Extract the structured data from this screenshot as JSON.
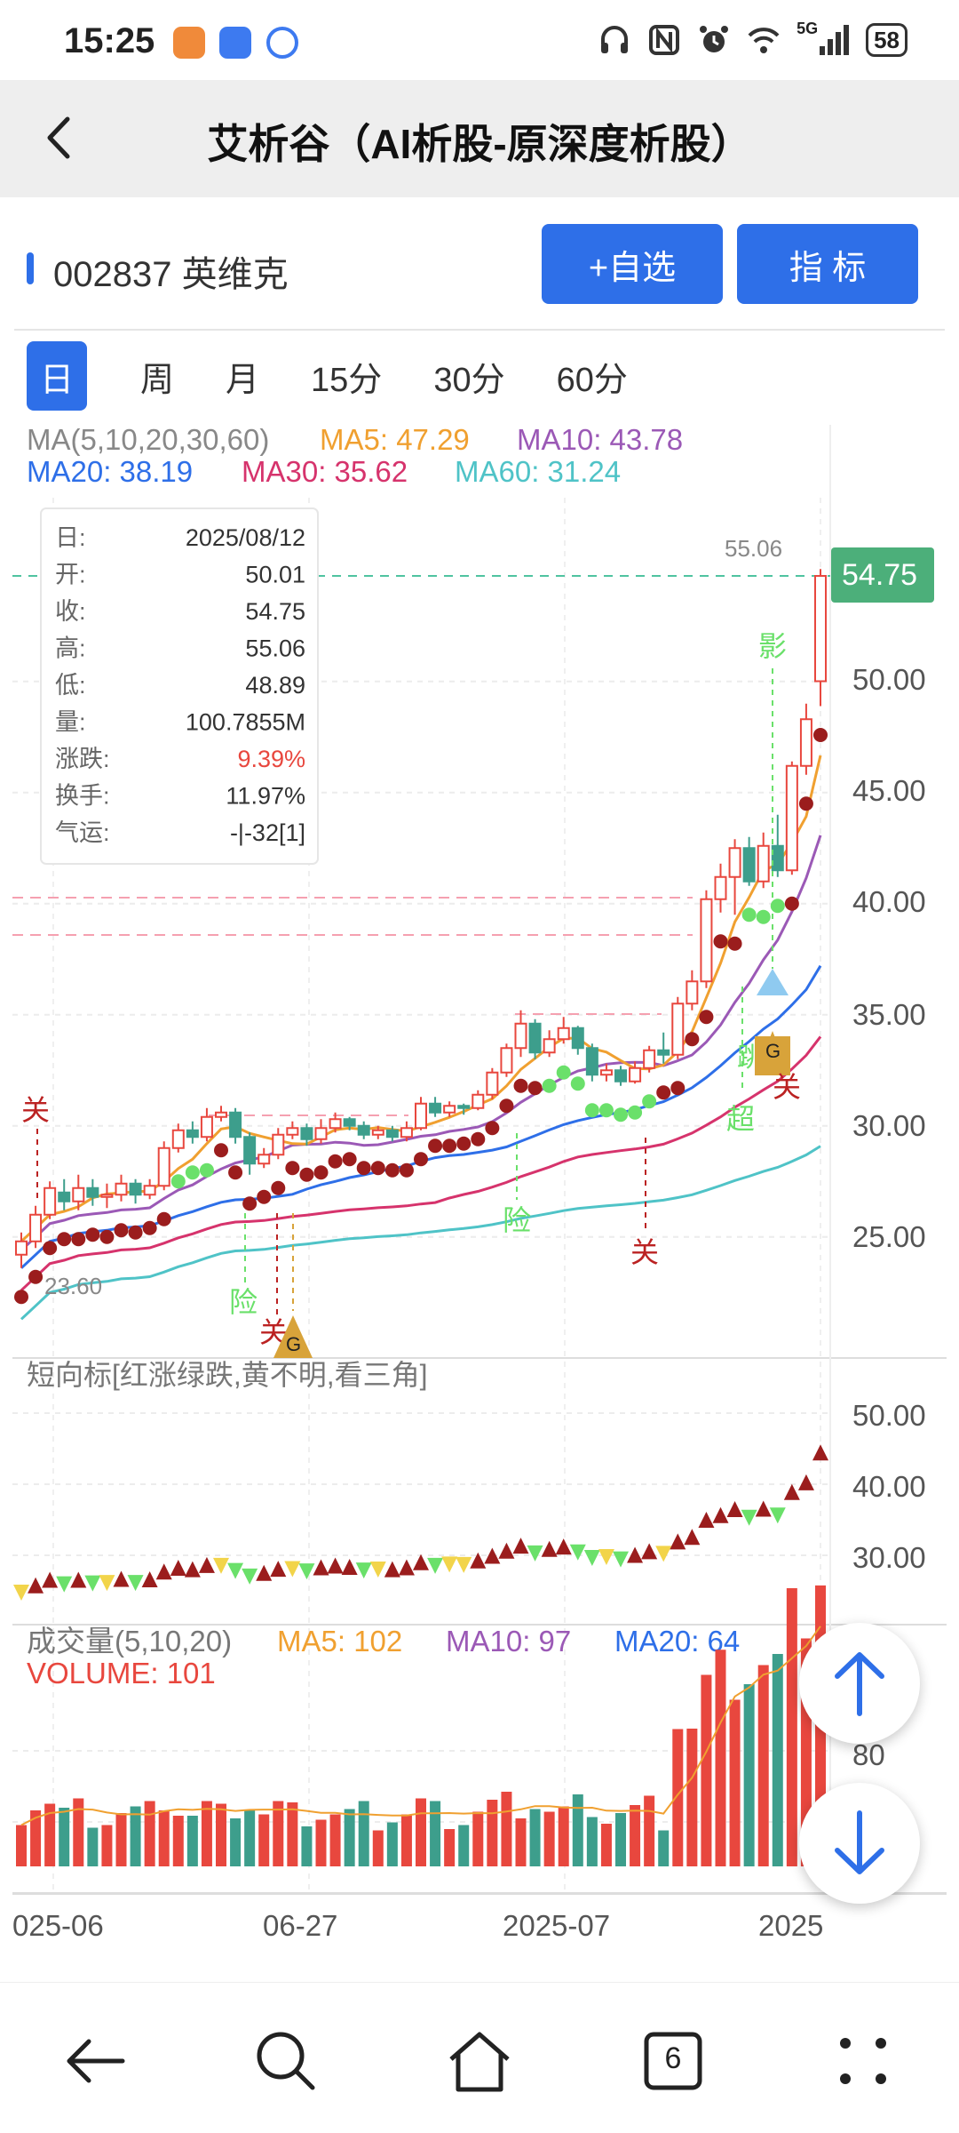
{
  "status_bar": {
    "time": "15:25",
    "signal_label": "5G",
    "battery": "58"
  },
  "nav": {
    "title": "艾析谷（AI析股-原深度析股）"
  },
  "stock": {
    "code_name": "002837 英维克",
    "add_watch_label": "+自选",
    "indicator_label": "指  标"
  },
  "tabs": [
    "日",
    "周",
    "月",
    "15分",
    "30分",
    "60分"
  ],
  "ma_legend": {
    "title": "MA(5,10,20,30,60)",
    "ma5": "MA5: 47.29",
    "ma10": "MA10: 43.78",
    "ma20": "MA20: 38.19",
    "ma30": "MA30: 35.62",
    "ma60": "MA60: 31.24"
  },
  "info_box": [
    {
      "label": "日:",
      "value": "2025/08/12"
    },
    {
      "label": "开:",
      "value": "50.01"
    },
    {
      "label": "收:",
      "value": "54.75"
    },
    {
      "label": "高:",
      "value": "55.06"
    },
    {
      "label": "低:",
      "value": "48.89"
    },
    {
      "label": "量:",
      "value": "100.7855M"
    },
    {
      "label": "涨跌:",
      "value": "9.39%"
    },
    {
      "label": "换手:",
      "value": "11.97%"
    },
    {
      "label": "气运:",
      "value": "-|-32[1]"
    }
  ],
  "price_axis": [
    "50.00",
    "45.00",
    "40.00",
    "35.00",
    "30.00",
    "25.00"
  ],
  "last_price": "54.75",
  "high_label": "55.06",
  "low_label": "23.60",
  "annotations": {
    "guan": "关",
    "xian": "险",
    "ying": "影",
    "chao": "超",
    "tiao": "跳",
    "g": "G"
  },
  "short_panel": {
    "title": "短向标[红涨绿跌,黄不明,看三角]",
    "axis": [
      "50.00",
      "40.00",
      "30.00"
    ]
  },
  "volume_panel": {
    "title": "成交量(5,10,20)",
    "ma5": "MA5: 102",
    "ma10": "MA10: 97",
    "ma20": "MA20: 64",
    "volume": "VOLUME: 101",
    "axis": [
      "80"
    ]
  },
  "x_axis": [
    "025-06",
    "06-27",
    "2025-07",
    "2025"
  ],
  "bottom_nav": {
    "tabs_count": "6"
  },
  "colors": {
    "up": "#e8473e",
    "down": "#3d9e8c",
    "ma5": "#f0a030",
    "ma10": "#9b59b6",
    "ma20": "#2e6fe8",
    "ma30": "#d6336c",
    "ma60": "#4fc3c7",
    "accent": "#2e6fe8"
  },
  "chart_data": {
    "type": "candlestick",
    "candles": [
      [
        24.2,
        24.8,
        23.6,
        25.2
      ],
      [
        24.8,
        26.0,
        24.5,
        26.4
      ],
      [
        26.0,
        27.2,
        25.8,
        27.5
      ],
      [
        27.0,
        26.6,
        26.2,
        27.6
      ],
      [
        26.6,
        27.2,
        26.2,
        27.8
      ],
      [
        27.2,
        26.8,
        26.4,
        27.6
      ],
      [
        26.8,
        26.9,
        26.3,
        27.4
      ],
      [
        26.9,
        27.4,
        26.6,
        27.8
      ],
      [
        27.4,
        26.9,
        26.5,
        27.6
      ],
      [
        26.9,
        27.3,
        26.7,
        27.6
      ],
      [
        27.3,
        29.0,
        27.1,
        29.3
      ],
      [
        29.0,
        29.8,
        28.8,
        30.1
      ],
      [
        29.8,
        29.5,
        29.2,
        30.2
      ],
      [
        29.5,
        30.4,
        29.3,
        30.8
      ],
      [
        30.4,
        30.6,
        30.2,
        30.9
      ],
      [
        30.6,
        29.5,
        29.2,
        30.8
      ],
      [
        29.5,
        28.3,
        27.8,
        29.7
      ],
      [
        28.3,
        28.7,
        28.1,
        29.0
      ],
      [
        28.7,
        29.6,
        28.5,
        29.9
      ],
      [
        29.6,
        29.9,
        29.4,
        30.2
      ],
      [
        29.9,
        29.4,
        29.1,
        30.1
      ],
      [
        29.4,
        29.9,
        29.2,
        30.3
      ],
      [
        29.9,
        30.3,
        29.7,
        30.6
      ],
      [
        30.3,
        30.0,
        29.8,
        30.4
      ],
      [
        30.0,
        29.6,
        29.4,
        30.2
      ],
      [
        29.6,
        29.8,
        29.4,
        30.0
      ],
      [
        29.8,
        29.5,
        29.3,
        30.0
      ],
      [
        29.5,
        29.9,
        29.3,
        30.2
      ],
      [
        29.9,
        31.0,
        29.8,
        31.3
      ],
      [
        31.0,
        30.6,
        30.4,
        31.3
      ],
      [
        30.6,
        30.9,
        30.4,
        31.1
      ],
      [
        30.9,
        30.8,
        30.5,
        31.0
      ],
      [
        30.8,
        31.4,
        30.7,
        31.6
      ],
      [
        31.4,
        32.4,
        31.2,
        32.6
      ],
      [
        32.4,
        33.5,
        32.2,
        33.7
      ],
      [
        33.5,
        34.6,
        33.1,
        35.2
      ],
      [
        34.6,
        33.3,
        33.0,
        34.8
      ],
      [
        33.3,
        33.9,
        33.1,
        34.3
      ],
      [
        33.9,
        34.4,
        33.7,
        34.9
      ],
      [
        34.4,
        33.5,
        33.2,
        34.5
      ],
      [
        33.5,
        32.3,
        32.0,
        33.7
      ],
      [
        32.3,
        32.5,
        32.0,
        32.8
      ],
      [
        32.5,
        32.0,
        31.8,
        32.7
      ],
      [
        32.0,
        32.6,
        31.9,
        32.9
      ],
      [
        32.6,
        33.4,
        32.4,
        33.6
      ],
      [
        33.4,
        33.2,
        32.8,
        34.2
      ],
      [
        33.2,
        35.5,
        33.0,
        35.8
      ],
      [
        35.5,
        36.5,
        35.2,
        37.0
      ],
      [
        36.5,
        40.2,
        36.2,
        40.6
      ],
      [
        40.2,
        41.2,
        39.6,
        41.8
      ],
      [
        41.2,
        42.5,
        39.5,
        42.9
      ],
      [
        42.5,
        41.0,
        40.8,
        43.0
      ],
      [
        41.0,
        42.6,
        40.7,
        43.2
      ],
      [
        42.6,
        41.5,
        41.2,
        44.0
      ],
      [
        41.5,
        46.2,
        41.3,
        46.4
      ],
      [
        46.2,
        48.3,
        45.8,
        49.0
      ],
      [
        50.01,
        54.75,
        48.89,
        55.06
      ]
    ]
  }
}
